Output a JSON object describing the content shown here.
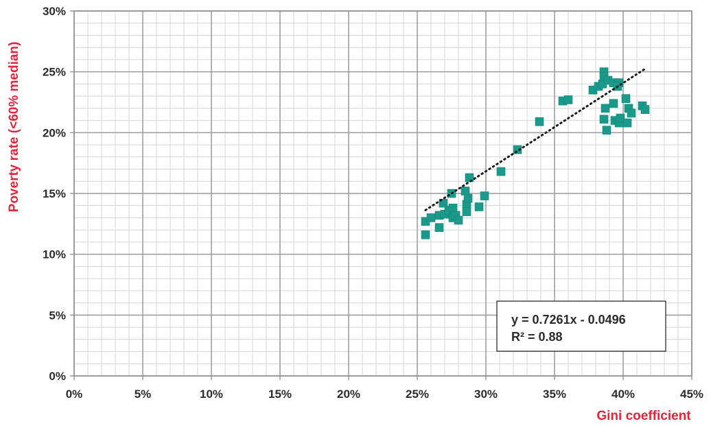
{
  "chart_data": {
    "type": "scatter",
    "xlabel": "Gini coefficient",
    "ylabel": "Poverty rate (<60% median)",
    "xlim": [
      0,
      45
    ],
    "ylim": [
      0,
      30
    ],
    "x_ticks": [
      "0%",
      "5%",
      "10%",
      "15%",
      "20%",
      "25%",
      "30%",
      "35%",
      "40%",
      "45%"
    ],
    "y_ticks": [
      "0%",
      "5%",
      "10%",
      "15%",
      "20%",
      "25%",
      "30%"
    ],
    "grid": true,
    "marker_color": "#1a9a8a",
    "trendline": {
      "slope": 0.7261,
      "intercept": -0.0496,
      "x_range": [
        25.6,
        41.6
      ],
      "equation_label": "y = 0.7261x - 0.0496",
      "r2_label": "R² = 0.88",
      "style": "dotted",
      "color": "#1a1a1a"
    },
    "points": [
      [
        25.6,
        11.6
      ],
      [
        25.6,
        12.7
      ],
      [
        26.0,
        13.0
      ],
      [
        26.6,
        12.2
      ],
      [
        26.6,
        13.2
      ],
      [
        26.9,
        14.2
      ],
      [
        27.0,
        13.3
      ],
      [
        27.3,
        13.6
      ],
      [
        27.5,
        15.0
      ],
      [
        27.6,
        13.8
      ],
      [
        27.6,
        13.0
      ],
      [
        27.8,
        13.2
      ],
      [
        28.0,
        12.8
      ],
      [
        28.5,
        15.2
      ],
      [
        28.6,
        14.1
      ],
      [
        28.6,
        13.5
      ],
      [
        28.7,
        14.6
      ],
      [
        28.8,
        16.3
      ],
      [
        29.5,
        13.9
      ],
      [
        29.9,
        14.8
      ],
      [
        31.1,
        16.8
      ],
      [
        32.3,
        18.6
      ],
      [
        33.9,
        20.9
      ],
      [
        35.6,
        22.6
      ],
      [
        36.0,
        22.7
      ],
      [
        37.8,
        23.5
      ],
      [
        38.2,
        23.8
      ],
      [
        38.5,
        24.0
      ],
      [
        38.6,
        25.0
      ],
      [
        38.6,
        24.6
      ],
      [
        38.9,
        24.3
      ],
      [
        39.3,
        24.1
      ],
      [
        39.7,
        24.1
      ],
      [
        39.6,
        23.8
      ],
      [
        38.6,
        21.1
      ],
      [
        38.7,
        22.0
      ],
      [
        38.8,
        20.2
      ],
      [
        39.3,
        22.4
      ],
      [
        39.4,
        21.0
      ],
      [
        39.7,
        20.8
      ],
      [
        39.8,
        21.2
      ],
      [
        40.2,
        22.8
      ],
      [
        40.3,
        20.8
      ],
      [
        40.4,
        22.0
      ],
      [
        40.6,
        21.6
      ],
      [
        41.4,
        22.2
      ],
      [
        41.6,
        21.9
      ]
    ]
  }
}
